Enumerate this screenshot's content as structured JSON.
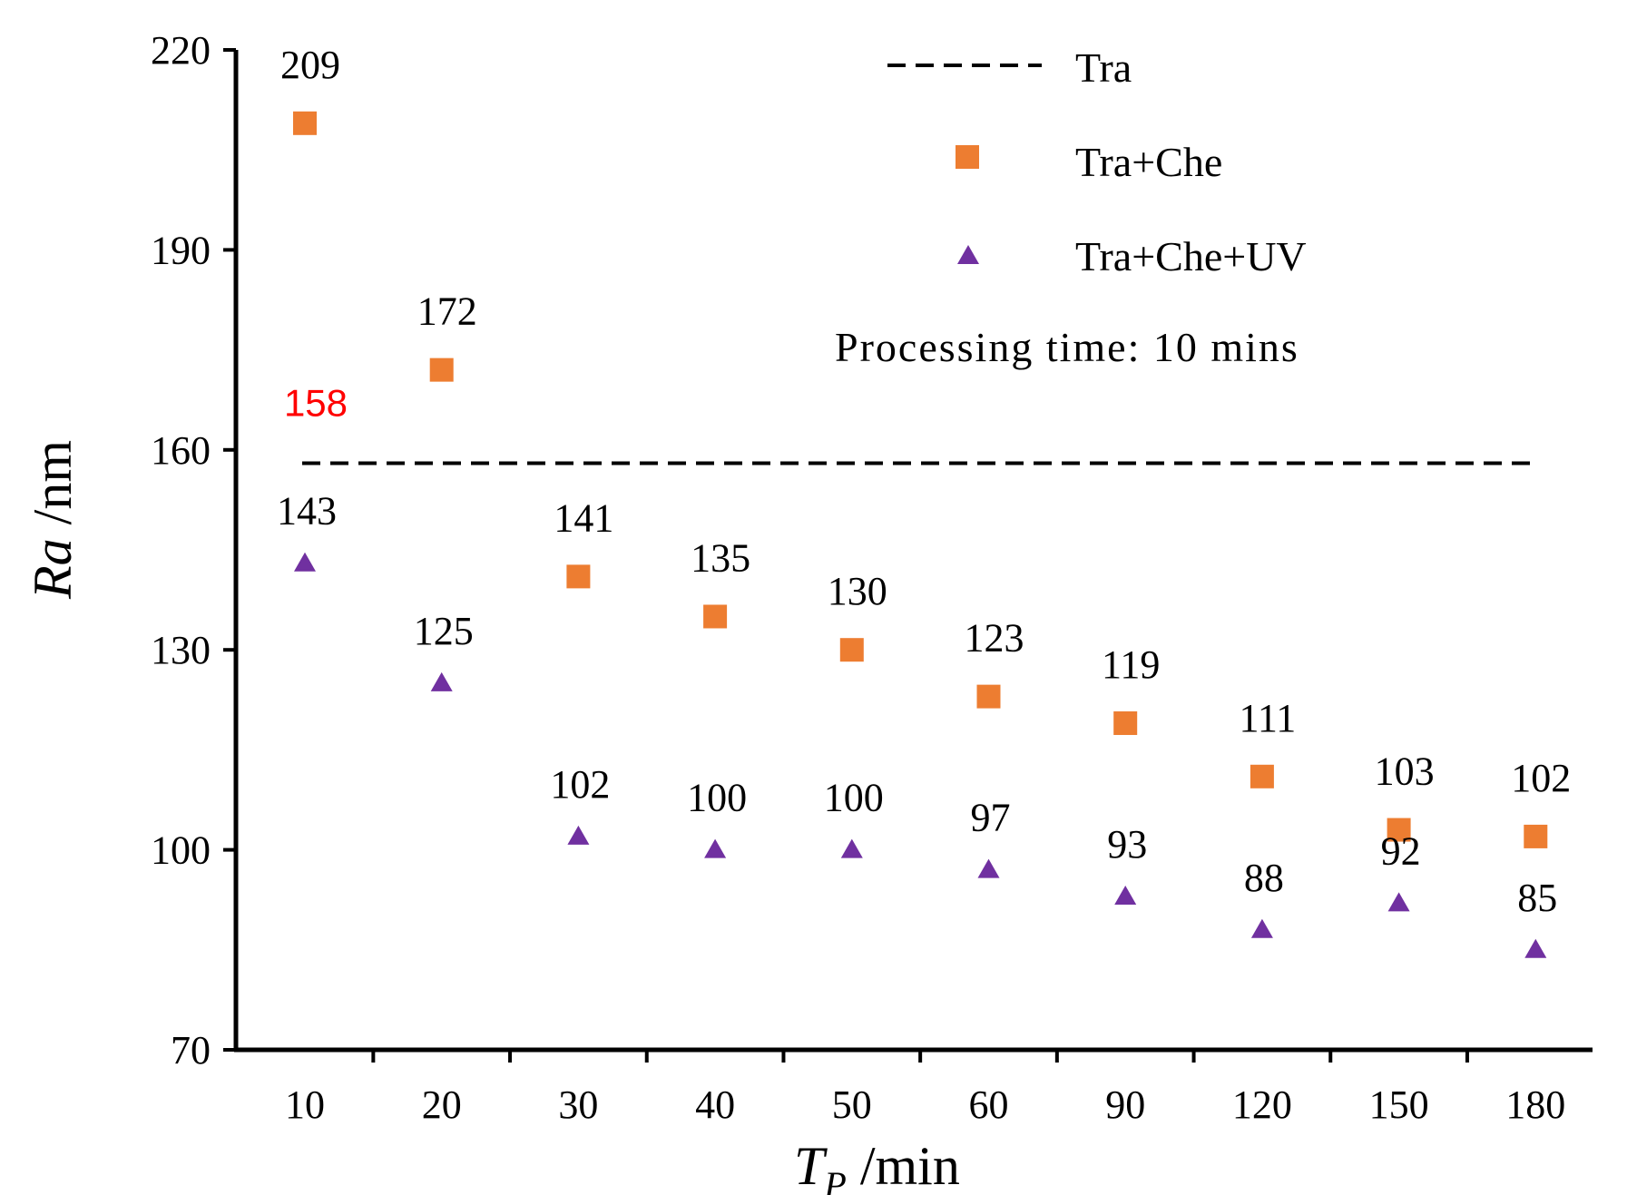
{
  "chart_data": {
    "type": "scatter",
    "categories": [
      "10",
      "20",
      "30",
      "40",
      "50",
      "60",
      "90",
      "120",
      "150",
      "180"
    ],
    "xlabel_main": "T",
    "xlabel_sub": "P",
    "xlabel_unit": " /min",
    "ylabel_main": "Ra",
    "ylabel_unit": " /nm",
    "ylim": [
      70,
      220
    ],
    "yticks": [
      "70",
      "100",
      "130",
      "160",
      "190",
      "220"
    ],
    "reference_line": {
      "name": "Tra",
      "value": 158,
      "label": "158",
      "color": "#ff0000"
    },
    "series": [
      {
        "name": "Tra+Che",
        "marker": "square",
        "color": "#ed7d31",
        "values": [
          209,
          172,
          141,
          135,
          130,
          123,
          119,
          111,
          103,
          102
        ],
        "labels": [
          "209",
          "172",
          "141",
          "135",
          "130",
          "123",
          "119",
          "111",
          "103",
          "102"
        ]
      },
      {
        "name": "Tra+Che+UV",
        "marker": "triangle",
        "color": "#7030a0",
        "values": [
          143,
          125,
          102,
          100,
          100,
          97,
          93,
          88,
          92,
          85
        ],
        "labels": [
          "143",
          "125",
          "102",
          "100",
          "100",
          "97",
          "93",
          "88",
          "92",
          "85"
        ]
      }
    ],
    "legend": {
      "position": "top-right",
      "entries": [
        "Tra",
        "Tra+Che",
        "Tra+Che+UV"
      ]
    },
    "annotation": "Processing time: 10 mins"
  }
}
